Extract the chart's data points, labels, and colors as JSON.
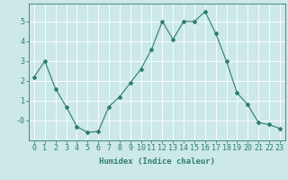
{
  "x": [
    0,
    1,
    2,
    3,
    4,
    5,
    6,
    7,
    8,
    9,
    10,
    11,
    12,
    13,
    14,
    15,
    16,
    17,
    18,
    19,
    20,
    21,
    22,
    23
  ],
  "y": [
    2.2,
    3.0,
    1.6,
    0.7,
    -0.3,
    -0.6,
    -0.55,
    0.7,
    1.2,
    1.9,
    2.6,
    3.6,
    5.0,
    4.1,
    5.0,
    5.0,
    5.5,
    4.4,
    3.0,
    1.4,
    0.8,
    -0.1,
    -0.2,
    -0.4
  ],
  "line_color": "#2e7d72",
  "marker": "D",
  "marker_size": 2.0,
  "bg_color": "#cce8e8",
  "grid_color": "#ffffff",
  "xlabel": "Humidex (Indice chaleur)",
  "ylim": [
    -1.0,
    5.9
  ],
  "xlim": [
    -0.5,
    23.5
  ],
  "yticks": [
    0,
    1,
    2,
    3,
    4,
    5
  ],
  "ytick_labels": [
    "-0",
    "1",
    "2",
    "3",
    "4",
    "5"
  ],
  "xticks": [
    0,
    1,
    2,
    3,
    4,
    5,
    6,
    7,
    8,
    9,
    10,
    11,
    12,
    13,
    14,
    15,
    16,
    17,
    18,
    19,
    20,
    21,
    22,
    23
  ],
  "xlabel_fontsize": 6.5,
  "tick_fontsize": 6,
  "tick_color": "#2e7d72",
  "spine_color": "#2e7d72",
  "linewidth": 0.8
}
